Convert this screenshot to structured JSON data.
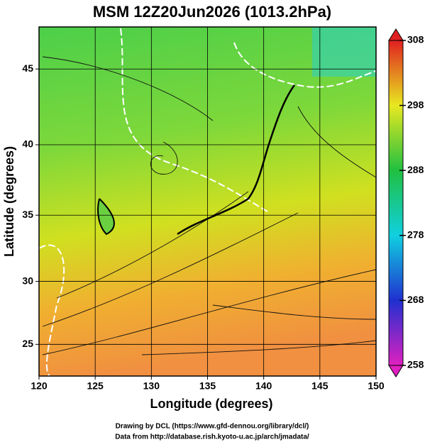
{
  "chart_data": {
    "type": "map",
    "title": "MSM 12Z20Jun2026 (1013.2hPa)",
    "xlabel": "Longitude (degrees)",
    "ylabel": "Latitude  (degrees)",
    "xlim": [
      120,
      150
    ],
    "xticks": [
      120,
      125,
      130,
      135,
      140,
      145,
      150
    ],
    "ylim": [
      22.4,
      47.6
    ],
    "yticks": [
      25,
      30,
      35,
      40,
      45
    ],
    "grid": true,
    "colorbar": {
      "lim": [
        258,
        308
      ],
      "ticks": [
        258,
        268,
        278,
        288,
        298,
        308
      ],
      "colors": [
        "#e020c0",
        "#2030d0",
        "#10d0e0",
        "#20c040",
        "#e8e820",
        "#e02020"
      ]
    },
    "footer": [
      "Drawing by DCL (https://www.gfd-dennou.org/library/dcl/)",
      "Data from http://database.rish.kyoto-u.ac.jp/arch/jmadata/"
    ]
  }
}
